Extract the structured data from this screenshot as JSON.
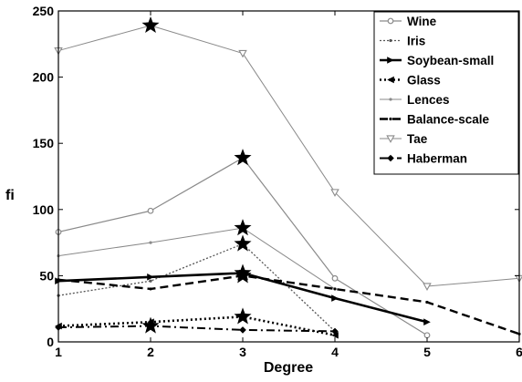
{
  "chart_data": {
    "type": "line",
    "title": "",
    "xlabel": "Degree",
    "ylabel": "fi",
    "xlim": [
      1,
      6
    ],
    "ylim": [
      0,
      250
    ],
    "x_ticks": [
      "1",
      "2",
      "3",
      "4",
      "5",
      "6"
    ],
    "y_ticks": [
      "0",
      "50",
      "100",
      "150",
      "200",
      "250"
    ],
    "grid": false,
    "legend_position": "top-right",
    "series": [
      {
        "name": "Wine",
        "color": "#8a8a8a",
        "dash": "solid",
        "marker": "circle",
        "x": [
          1,
          2,
          3,
          4,
          5
        ],
        "y": [
          83,
          99,
          139,
          48,
          5
        ]
      },
      {
        "name": "Iris",
        "color": "#555555",
        "dash": "dotted",
        "marker": "dot",
        "x": [
          1,
          2,
          3,
          4
        ],
        "y": [
          35,
          46,
          74,
          8
        ]
      },
      {
        "name": "Soybean-small",
        "color": "#000000",
        "dash": "solid-thick",
        "marker": "triangle-right",
        "x": [
          1,
          2,
          3,
          4,
          5
        ],
        "y": [
          46,
          49,
          52,
          33,
          15
        ]
      },
      {
        "name": "Glass",
        "color": "#000000",
        "dash": "dotted-thick",
        "marker": "triangle-left",
        "x": [
          1,
          2,
          3,
          4
        ],
        "y": [
          12,
          15,
          19,
          5
        ]
      },
      {
        "name": "Lences",
        "color": "#8a8a8a",
        "dash": "solid-thin",
        "marker": "dot",
        "x": [
          1,
          2,
          3,
          4
        ],
        "y": [
          65,
          75,
          86,
          40
        ]
      },
      {
        "name": "Balance-scale",
        "color": "#000000",
        "dash": "dashed",
        "marker": "dot",
        "x": [
          1,
          2,
          3,
          4,
          5,
          6
        ],
        "y": [
          47,
          40,
          50,
          40,
          30,
          6
        ]
      },
      {
        "name": "Tae",
        "color": "#8a8a8a",
        "dash": "solid-thin",
        "marker": "triangle-down",
        "x": [
          1,
          2,
          3,
          4,
          5,
          6
        ],
        "y": [
          220,
          239,
          218,
          113,
          42,
          48
        ]
      },
      {
        "name": "Haberman",
        "color": "#000000",
        "dash": "dash-dot",
        "marker": "diamond",
        "x": [
          1,
          2,
          3,
          4
        ],
        "y": [
          11,
          12,
          9,
          8
        ]
      }
    ],
    "highlight_markers": [
      {
        "marker": "star",
        "x": 2,
        "y": 239
      },
      {
        "marker": "star",
        "x": 3,
        "y": 139
      },
      {
        "marker": "star",
        "x": 3,
        "y": 86
      },
      {
        "marker": "star",
        "x": 3,
        "y": 74
      },
      {
        "marker": "star",
        "x": 3,
        "y": 52
      },
      {
        "marker": "star",
        "x": 3,
        "y": 50
      },
      {
        "marker": "star",
        "x": 3,
        "y": 19
      },
      {
        "marker": "star",
        "x": 2,
        "y": 12
      }
    ]
  }
}
